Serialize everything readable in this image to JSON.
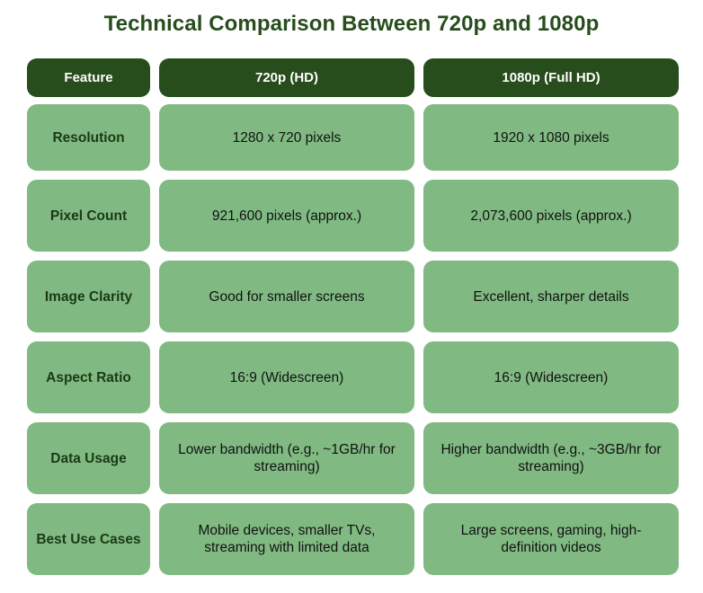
{
  "title": "Technical Comparison Between 720p and 1080p",
  "headers": [
    "Feature",
    "720p (HD)",
    "1080p (Full HD)"
  ],
  "rows": [
    {
      "feature": "Resolution",
      "hd": "1280 x 720 pixels",
      "fullhd": "1920 x 1080 pixels"
    },
    {
      "feature": "Pixel Count",
      "hd": "921,600 pixels (approx.)",
      "fullhd": "2,073,600 pixels (approx.)"
    },
    {
      "feature": "Image Clarity",
      "hd": "Good for smaller screens",
      "fullhd": "Excellent, sharper details"
    },
    {
      "feature": "Aspect Ratio",
      "hd": "16:9 (Widescreen)",
      "fullhd": "16:9 (Widescreen)"
    },
    {
      "feature": "Data Usage",
      "hd": "Lower bandwidth (e.g., ~1GB/hr for streaming)",
      "fullhd": "Higher bandwidth (e.g., ~3GB/hr for streaming)"
    },
    {
      "feature": "Best Use Cases",
      "hd": "Mobile devices, smaller TVs, streaming with limited data",
      "fullhd": "Large screens, gaming, high-definition videos"
    }
  ],
  "colors": {
    "header_bg": "#274d1c",
    "cell_bg": "#80ba82",
    "title_text": "#274d1c"
  }
}
